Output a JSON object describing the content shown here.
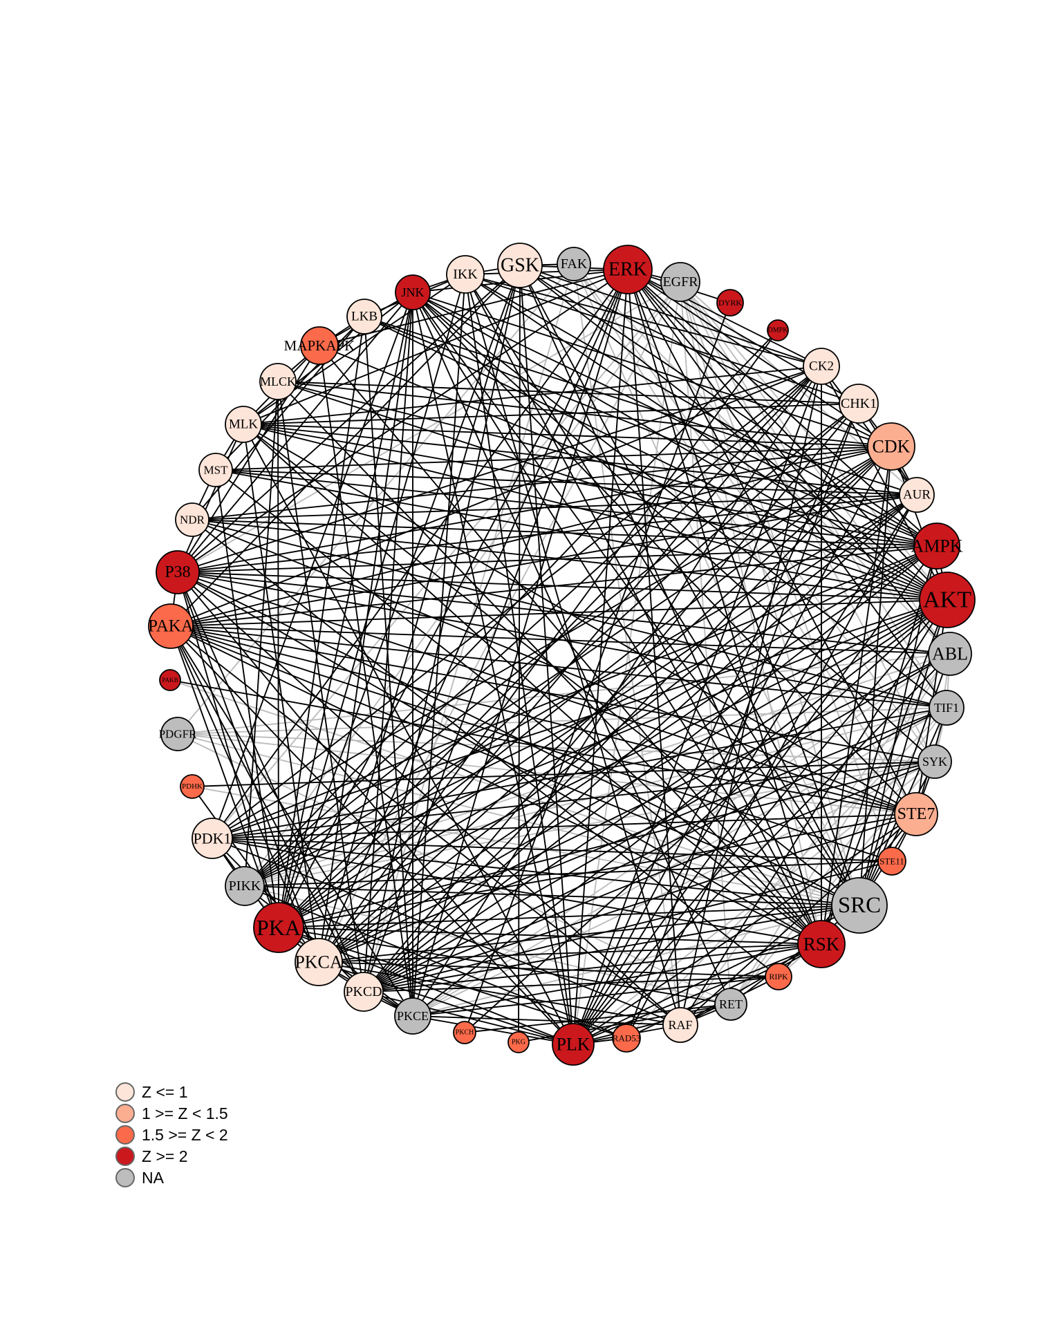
{
  "colors": {
    "z_le_1": "#FEE5D9",
    "z_1_15": "#FCAE91",
    "z_15_2": "#FB6A4A",
    "z_ge_2": "#CB181D",
    "na": "#BDBDBD",
    "edge": "#000000",
    "edge_light": "#BDBDBD"
  },
  "legend": [
    {
      "label": "Z <= 1",
      "color": "z_le_1"
    },
    {
      "label": "1 >= Z < 1.5",
      "color": "z_1_15"
    },
    {
      "label": "1.5 >= Z < 2",
      "color": "z_15_2"
    },
    {
      "label": "Z >= 2",
      "color": "z_ge_2"
    },
    {
      "label": "NA",
      "color": "na"
    }
  ],
  "nodes": [
    {
      "id": "GSK",
      "category": "z_le_1"
    },
    {
      "id": "FAK",
      "category": "na"
    },
    {
      "id": "ERK",
      "category": "z_ge_2"
    },
    {
      "id": "EGFR",
      "category": "na"
    },
    {
      "id": "DYRK",
      "category": "z_ge_2"
    },
    {
      "id": "DMPK",
      "category": "z_ge_2"
    },
    {
      "id": "CK2",
      "category": "z_le_1"
    },
    {
      "id": "CHK1",
      "category": "z_le_1"
    },
    {
      "id": "CDK",
      "category": "z_1_15"
    },
    {
      "id": "AUR",
      "category": "z_le_1"
    },
    {
      "id": "AMPK",
      "category": "z_ge_2"
    },
    {
      "id": "AKT",
      "category": "z_ge_2"
    },
    {
      "id": "ABL",
      "category": "na"
    },
    {
      "id": "TIF1",
      "category": "na"
    },
    {
      "id": "SYK",
      "category": "na"
    },
    {
      "id": "STE7",
      "category": "z_1_15"
    },
    {
      "id": "STE11",
      "category": "z_15_2"
    },
    {
      "id": "SRC",
      "category": "na"
    },
    {
      "id": "RSK",
      "category": "z_ge_2"
    },
    {
      "id": "RIPK",
      "category": "z_15_2"
    },
    {
      "id": "RET",
      "category": "na"
    },
    {
      "id": "RAF",
      "category": "z_le_1"
    },
    {
      "id": "RAD53",
      "category": "z_15_2"
    },
    {
      "id": "PLK",
      "category": "z_ge_2"
    },
    {
      "id": "PKG",
      "category": "z_15_2"
    },
    {
      "id": "PKCH",
      "category": "z_15_2"
    },
    {
      "id": "PKCE",
      "category": "na"
    },
    {
      "id": "PKCD",
      "category": "z_le_1"
    },
    {
      "id": "PKCA",
      "category": "z_le_1"
    },
    {
      "id": "PKA",
      "category": "z_ge_2"
    },
    {
      "id": "PIKK",
      "category": "na"
    },
    {
      "id": "PDK1",
      "category": "z_le_1"
    },
    {
      "id": "PDHK",
      "category": "z_15_2"
    },
    {
      "id": "PDGFR",
      "category": "na"
    },
    {
      "id": "PAKB",
      "category": "z_ge_2"
    },
    {
      "id": "PAKA",
      "category": "z_15_2"
    },
    {
      "id": "P38",
      "category": "z_ge_2"
    },
    {
      "id": "NDR",
      "category": "z_le_1"
    },
    {
      "id": "MST",
      "category": "z_le_1"
    },
    {
      "id": "MLK",
      "category": "z_le_1"
    },
    {
      "id": "MLCK",
      "category": "z_le_1"
    },
    {
      "id": "MAPKAPK",
      "category": "z_15_2"
    },
    {
      "id": "LKB",
      "category": "z_le_1"
    },
    {
      "id": "JNK",
      "category": "z_ge_2"
    },
    {
      "id": "IKK",
      "category": "z_le_1"
    }
  ],
  "edges": [
    [
      "GSK",
      "ERK"
    ],
    [
      "GSK",
      "AKT"
    ],
    [
      "GSK",
      "CDK"
    ],
    [
      "GSK",
      "PKA"
    ],
    [
      "GSK",
      "PKCA"
    ],
    [
      "GSK",
      "PLK"
    ],
    [
      "GSK",
      "RSK"
    ],
    [
      "GSK",
      "AMPK"
    ],
    [
      "GSK",
      "P38"
    ],
    [
      "GSK",
      "PKG"
    ],
    [
      "GSK",
      "SRC"
    ],
    [
      "GSK",
      "IKK"
    ],
    [
      "GSK",
      "FAK"
    ],
    [
      "GSK",
      "CK2"
    ],
    [
      "GSK",
      "PAKA"
    ],
    [
      "GSK",
      "PKCD"
    ],
    [
      "ERK",
      "RSK"
    ],
    [
      "ERK",
      "P38"
    ],
    [
      "ERK",
      "JNK"
    ],
    [
      "ERK",
      "CDK"
    ],
    [
      "ERK",
      "AKT"
    ],
    [
      "ERK",
      "PKA"
    ],
    [
      "ERK",
      "PKCA"
    ],
    [
      "ERK",
      "STE7"
    ],
    [
      "ERK",
      "MAPKAPK"
    ],
    [
      "ERK",
      "PLK"
    ],
    [
      "ERK",
      "SRC"
    ],
    [
      "ERK",
      "ABL"
    ],
    [
      "ERK",
      "IKK"
    ],
    [
      "ERK",
      "CK2"
    ],
    [
      "ERK",
      "PKCE"
    ],
    [
      "ERK",
      "PDK1"
    ],
    [
      "ERK",
      "EGFR"
    ],
    [
      "ERK",
      "DYRK"
    ],
    [
      "ERK",
      "RAF"
    ],
    [
      "ERK",
      "AMPK"
    ],
    [
      "ERK",
      "MLK"
    ],
    [
      "ERK",
      "TIF1"
    ],
    [
      "ERK",
      "PKCD"
    ],
    [
      "ERK",
      "CHK1"
    ],
    [
      "AKT",
      "PKA"
    ],
    [
      "AKT",
      "PDK1"
    ],
    [
      "AKT",
      "PKCA"
    ],
    [
      "AKT",
      "P38"
    ],
    [
      "AKT",
      "MAPKAPK"
    ],
    [
      "AKT",
      "RSK"
    ],
    [
      "AKT",
      "AMPK"
    ],
    [
      "AKT",
      "MLCK"
    ],
    [
      "AKT",
      "MLK"
    ],
    [
      "AKT",
      "MST"
    ],
    [
      "AKT",
      "NDR"
    ],
    [
      "AKT",
      "PAKA"
    ],
    [
      "AKT",
      "PKCD"
    ],
    [
      "AKT",
      "PKCE"
    ],
    [
      "AKT",
      "PIKK"
    ],
    [
      "AKT",
      "JNK"
    ],
    [
      "AKT",
      "LKB"
    ],
    [
      "AKT",
      "IKK"
    ],
    [
      "AKT",
      "PLK"
    ],
    [
      "AKT",
      "CDK"
    ],
    [
      "AKT",
      "CK2"
    ],
    [
      "AKT",
      "STE7"
    ],
    [
      "AKT",
      "SRC"
    ],
    [
      "AKT",
      "RAF"
    ],
    [
      "AKT",
      "PKCH"
    ],
    [
      "PKA",
      "PKCA"
    ],
    [
      "PKA",
      "CDK"
    ],
    [
      "PKA",
      "AMPK"
    ],
    [
      "PKA",
      "AUR"
    ],
    [
      "PKA",
      "RSK"
    ],
    [
      "PKA",
      "P38"
    ],
    [
      "PKA",
      "PAKA"
    ],
    [
      "PKA",
      "PDK1"
    ],
    [
      "PKA",
      "PLK"
    ],
    [
      "PKA",
      "CHK1"
    ],
    [
      "PKA",
      "IKK"
    ],
    [
      "PKA",
      "JNK"
    ],
    [
      "PKA",
      "LKB"
    ],
    [
      "PKA",
      "MLCK"
    ],
    [
      "PKA",
      "MST"
    ],
    [
      "PKA",
      "CK2"
    ],
    [
      "PKA",
      "SYK"
    ],
    [
      "PKA",
      "STE7"
    ],
    [
      "PKA",
      "RAD53"
    ],
    [
      "PKA",
      "SRC"
    ],
    [
      "PKA",
      "RET"
    ],
    [
      "PKA",
      "PKCE"
    ],
    [
      "PKCA",
      "PKCD"
    ],
    [
      "PKCA",
      "PKCE"
    ],
    [
      "PKCA",
      "CDK"
    ],
    [
      "PKCA",
      "AMPK"
    ],
    [
      "PKCA",
      "RSK"
    ],
    [
      "PKCA",
      "P38"
    ],
    [
      "PKCA",
      "PAKA"
    ],
    [
      "PKCA",
      "PLK"
    ],
    [
      "PKCA",
      "MLK"
    ],
    [
      "PKCA",
      "JNK"
    ],
    [
      "PKCA",
      "CK2"
    ],
    [
      "PKCA",
      "AUR"
    ],
    [
      "PKCA",
      "SRC"
    ],
    [
      "PKCA",
      "TIF1"
    ],
    [
      "PKCA",
      "RAF"
    ],
    [
      "PKCA",
      "RIPK"
    ],
    [
      "PKCA",
      "ABL"
    ],
    [
      "CDK",
      "PLK"
    ],
    [
      "CDK",
      "AUR"
    ],
    [
      "CDK",
      "CHK1"
    ],
    [
      "CDK",
      "P38"
    ],
    [
      "CDK",
      "PAKA"
    ],
    [
      "CDK",
      "RSK"
    ],
    [
      "CDK",
      "JNK"
    ],
    [
      "CDK",
      "MLCK"
    ],
    [
      "CDK",
      "MLK"
    ],
    [
      "CDK",
      "NDR"
    ],
    [
      "CDK",
      "PDK1"
    ],
    [
      "CDK",
      "PKCD"
    ],
    [
      "CDK",
      "PIKK"
    ],
    [
      "CDK",
      "SRC"
    ],
    [
      "CDK",
      "MST"
    ],
    [
      "RSK",
      "P38"
    ],
    [
      "RSK",
      "PAKA"
    ],
    [
      "RSK",
      "PKCD"
    ],
    [
      "RSK",
      "PKCE"
    ],
    [
      "RSK",
      "PDK1"
    ],
    [
      "RSK",
      "PLK"
    ],
    [
      "RSK",
      "MAPKAPK"
    ],
    [
      "RSK",
      "JNK"
    ],
    [
      "RSK",
      "IKK"
    ],
    [
      "RSK",
      "AMPK"
    ],
    [
      "RSK",
      "CK2"
    ],
    [
      "RSK",
      "RAF"
    ],
    [
      "RSK",
      "RAD53"
    ],
    [
      "RSK",
      "MLK"
    ],
    [
      "P38",
      "JNK"
    ],
    [
      "P38",
      "MAPKAPK"
    ],
    [
      "P38",
      "PAKA"
    ],
    [
      "P38",
      "AMPK"
    ],
    [
      "P38",
      "PKCD"
    ],
    [
      "P38",
      "PLK"
    ],
    [
      "P38",
      "STE7"
    ],
    [
      "P38",
      "AUR"
    ],
    [
      "P38",
      "ABL"
    ],
    [
      "P38",
      "SRC"
    ],
    [
      "P38",
      "CK2"
    ],
    [
      "P38",
      "TIF1"
    ],
    [
      "P38",
      "MLK"
    ],
    [
      "P38",
      "RAF"
    ],
    [
      "PAKA",
      "AMPK"
    ],
    [
      "PAKA",
      "AUR"
    ],
    [
      "PAKA",
      "ABL"
    ],
    [
      "PAKA",
      "SRC"
    ],
    [
      "PAKA",
      "PLK"
    ],
    [
      "PAKA",
      "RAF"
    ],
    [
      "PAKA",
      "STE7"
    ],
    [
      "PAKA",
      "TIF1"
    ],
    [
      "PAKA",
      "PKCE"
    ],
    [
      "PAKA",
      "SYK"
    ],
    [
      "PAKA",
      "CK2"
    ],
    [
      "PAKA",
      "STE11"
    ],
    [
      "PAKA",
      "PKCD"
    ],
    [
      "AMPK",
      "LKB"
    ],
    [
      "AMPK",
      "MLK"
    ],
    [
      "AMPK",
      "MST"
    ],
    [
      "AMPK",
      "NDR"
    ],
    [
      "AMPK",
      "PDK1"
    ],
    [
      "AMPK",
      "PKCD"
    ],
    [
      "AMPK",
      "PLK"
    ],
    [
      "AMPK",
      "JNK"
    ],
    [
      "AMPK",
      "IKK"
    ],
    [
      "AMPK",
      "MLCK"
    ],
    [
      "AMPK",
      "PIKK"
    ],
    [
      "AMPK",
      "SRC"
    ],
    [
      "SRC",
      "ABL"
    ],
    [
      "SRC",
      "SYK"
    ],
    [
      "SRC",
      "TIF1"
    ],
    [
      "SRC",
      "PKCD"
    ],
    [
      "SRC",
      "PLK"
    ],
    [
      "SRC",
      "JNK"
    ],
    [
      "SRC",
      "MLK"
    ],
    [
      "SRC",
      "PDK1"
    ],
    [
      "SRC",
      "PIKK"
    ],
    [
      "SRC",
      "STE7"
    ],
    [
      "SRC",
      "IKK"
    ],
    [
      "SRC",
      "RET"
    ],
    [
      "PLK",
      "AUR"
    ],
    [
      "PLK",
      "CHK1"
    ],
    [
      "PLK",
      "RAD53"
    ],
    [
      "PLK",
      "CK2"
    ],
    [
      "PLK",
      "JNK"
    ],
    [
      "PLK",
      "IKK"
    ],
    [
      "PLK",
      "MLK"
    ],
    [
      "PLK",
      "PKCD"
    ],
    [
      "PLK",
      "PKCE"
    ],
    [
      "PLK",
      "STE7"
    ],
    [
      "PLK",
      "RAF"
    ],
    [
      "PLK",
      "RET"
    ],
    [
      "PLK",
      "ABL"
    ],
    [
      "JNK",
      "MLK"
    ],
    [
      "JNK",
      "PKCD"
    ],
    [
      "JNK",
      "PDK1"
    ],
    [
      "JNK",
      "PKCE"
    ],
    [
      "JNK",
      "STE7"
    ],
    [
      "JNK",
      "IKK"
    ],
    [
      "JNK",
      "TIF1"
    ],
    [
      "JNK",
      "SYK"
    ],
    [
      "JNK",
      "RET"
    ],
    [
      "PKCD",
      "PKCE"
    ],
    [
      "PKCD",
      "PDK1"
    ],
    [
      "PKCD",
      "AUR"
    ],
    [
      "PKCD",
      "CHK1"
    ],
    [
      "PKCD",
      "MLCK"
    ],
    [
      "PKCD",
      "ABL"
    ],
    [
      "PKCD",
      "TIF1"
    ],
    [
      "PKCD",
      "STE7"
    ],
    [
      "PKCD",
      "SYK"
    ],
    [
      "PKCD",
      "STE11"
    ],
    [
      "PKCD",
      "RIPK"
    ],
    [
      "PDK1",
      "STE7"
    ],
    [
      "PDK1",
      "STE11"
    ],
    [
      "PDK1",
      "SYK"
    ],
    [
      "PDK1",
      "TIF1"
    ],
    [
      "PDK1",
      "CK2"
    ],
    [
      "PDK1",
      "PIKK"
    ],
    [
      "PDK1",
      "RAF"
    ],
    [
      "IKK",
      "MLK"
    ],
    [
      "IKK",
      "LKB"
    ],
    [
      "IKK",
      "CHK1"
    ],
    [
      "IKK",
      "RAF"
    ],
    [
      "IKK",
      "PKCE"
    ],
    [
      "IKK",
      "CK2"
    ],
    [
      "MLK",
      "STE7"
    ],
    [
      "MLK",
      "MST"
    ],
    [
      "MLK",
      "MAPKAPK"
    ],
    [
      "MLK",
      "AUR"
    ],
    [
      "MLK",
      "CHK1"
    ],
    [
      "MLK",
      "CK2"
    ],
    [
      "MAPKAPK",
      "MLCK"
    ],
    [
      "MAPKAPK",
      "JNK"
    ],
    [
      "MAPKAPK",
      "LKB"
    ],
    [
      "MAPKAPK",
      "PKCE"
    ],
    [
      "LKB",
      "MST"
    ],
    [
      "LKB",
      "NDR"
    ],
    [
      "LKB",
      "AUR"
    ],
    [
      "LKB",
      "PKCE"
    ],
    [
      "CK2",
      "PIKK"
    ],
    [
      "CK2",
      "AUR"
    ],
    [
      "CK2",
      "PKCE"
    ],
    [
      "CK2",
      "RAF"
    ],
    [
      "AUR",
      "CHK1"
    ],
    [
      "AUR",
      "MST"
    ],
    [
      "AUR",
      "NDR"
    ],
    [
      "AUR",
      "PIKK"
    ],
    [
      "AUR",
      "RAD53"
    ],
    [
      "CHK1",
      "PIKK"
    ],
    [
      "CHK1",
      "RAD53"
    ],
    [
      "CHK1",
      "MLCK"
    ],
    [
      "STE7",
      "STE11"
    ],
    [
      "STE7",
      "RAF"
    ],
    [
      "STE7",
      "RIPK"
    ],
    [
      "STE7",
      "TIF1"
    ],
    [
      "STE7",
      "SYK"
    ],
    [
      "PIKK",
      "RAD53"
    ],
    [
      "PIKK",
      "MLCK"
    ],
    [
      "PIKK",
      "STE11"
    ],
    [
      "PIKK",
      "PKCE"
    ],
    [
      "PDHK",
      "SYK"
    ],
    [
      "PDHK",
      "PKCA"
    ],
    [
      "PAKB",
      "STE7"
    ],
    [
      "DYRK",
      "PKCH"
    ],
    [
      "DMPK",
      "PKCA"
    ],
    [
      "DMPK",
      "PIKK"
    ],
    [
      "RAF",
      "RET"
    ],
    [
      "RAF",
      "PKCE"
    ],
    [
      "RAF",
      "RIPK"
    ],
    [
      "RIPK",
      "PKCE"
    ],
    [
      "RIPK",
      "NDR"
    ],
    [
      "RET",
      "PKCH"
    ],
    [
      "RET",
      "PKG"
    ],
    [
      "MST",
      "NDR"
    ],
    [
      "MST",
      "RSK"
    ],
    [
      "NDR",
      "STE7"
    ],
    [
      "NDR",
      "TIF1"
    ],
    [
      "MLCK",
      "RSK"
    ]
  ],
  "edges_light": [
    [
      "EGFR",
      "SRC"
    ],
    [
      "EGFR",
      "ABL"
    ],
    [
      "EGFR",
      "SYK"
    ],
    [
      "EGFR",
      "PLK"
    ],
    [
      "EGFR",
      "STE11"
    ],
    [
      "EGFR",
      "PDK1"
    ],
    [
      "EGFR",
      "P38"
    ],
    [
      "EGFR",
      "PKCA"
    ],
    [
      "EGFR",
      "TIF1"
    ],
    [
      "EGFR",
      "RET"
    ],
    [
      "EGFR",
      "RSK"
    ],
    [
      "EGFR",
      "AUR"
    ],
    [
      "EGFR",
      "PIKK"
    ],
    [
      "EGFR",
      "AKT"
    ],
    [
      "FAK",
      "SRC"
    ],
    [
      "FAK",
      "SYK"
    ],
    [
      "FAK",
      "RAF"
    ],
    [
      "FAK",
      "PKCD"
    ],
    [
      "FAK",
      "STE7"
    ],
    [
      "FAK",
      "ABL"
    ],
    [
      "FAK",
      "PDGFR"
    ],
    [
      "PDGFR",
      "SRC"
    ],
    [
      "PDGFR",
      "ABL"
    ],
    [
      "PDGFR",
      "STE7"
    ],
    [
      "PDGFR",
      "SYK"
    ],
    [
      "PDGFR",
      "TIF1"
    ],
    [
      "PDGFR",
      "RET"
    ],
    [
      "ABL",
      "SYK"
    ],
    [
      "ABL",
      "TIF1"
    ],
    [
      "ABL",
      "RET"
    ],
    [
      "ABL",
      "PIKK"
    ],
    [
      "ABL",
      "PKCE"
    ],
    [
      "ABL",
      "RAF"
    ],
    [
      "SYK",
      "TIF1"
    ],
    [
      "SYK",
      "PKCE"
    ],
    [
      "SYK",
      "RET"
    ],
    [
      "SYK",
      "PIKK"
    ],
    [
      "SYK",
      "PLK"
    ],
    [
      "TIF1",
      "PKCE"
    ],
    [
      "TIF1",
      "RET"
    ],
    [
      "TIF1",
      "RAD53"
    ],
    [
      "TIF1",
      "PIKK"
    ],
    [
      "SRC",
      "PKCE"
    ],
    [
      "SRC",
      "PAKB"
    ],
    [
      "SRC",
      "RIPK"
    ],
    [
      "SRC",
      "PDHK"
    ],
    [
      "RET",
      "PIKK"
    ],
    [
      "PIKK",
      "PKCA"
    ],
    [
      "STE11",
      "PIKK"
    ]
  ]
}
